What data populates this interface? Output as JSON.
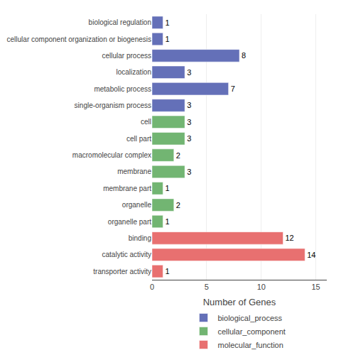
{
  "chart_data": {
    "type": "bar",
    "orientation": "horizontal",
    "categories": [
      "biological regulation",
      "cellular component organization or biogenesis",
      "cellular process",
      "localization",
      "metabolic process",
      "single-organism process",
      "cell",
      "cell part",
      "macromolecular complex",
      "membrane",
      "membrane part",
      "organelle",
      "organelle part",
      "binding",
      "catalytic activity",
      "transporter activity"
    ],
    "series": [
      {
        "name": "biological_process",
        "color": "#6470b8",
        "values": [
          1,
          1,
          8,
          3,
          7,
          3,
          null,
          null,
          null,
          null,
          null,
          null,
          null,
          null,
          null,
          null
        ]
      },
      {
        "name": "cellular_component",
        "color": "#72b572",
        "values": [
          null,
          null,
          null,
          null,
          null,
          null,
          3,
          3,
          2,
          3,
          1,
          2,
          1,
          null,
          null,
          null
        ]
      },
      {
        "name": "molecular_function",
        "color": "#e87070",
        "values": [
          null,
          null,
          null,
          null,
          null,
          null,
          null,
          null,
          null,
          null,
          null,
          null,
          null,
          12,
          14,
          1
        ]
      }
    ],
    "xlabel": "Number of Genes",
    "xlim": [
      0,
      16
    ],
    "xticks": [
      0,
      5,
      10,
      15
    ],
    "grid": true,
    "data_labels": true,
    "legend": "bottom"
  }
}
